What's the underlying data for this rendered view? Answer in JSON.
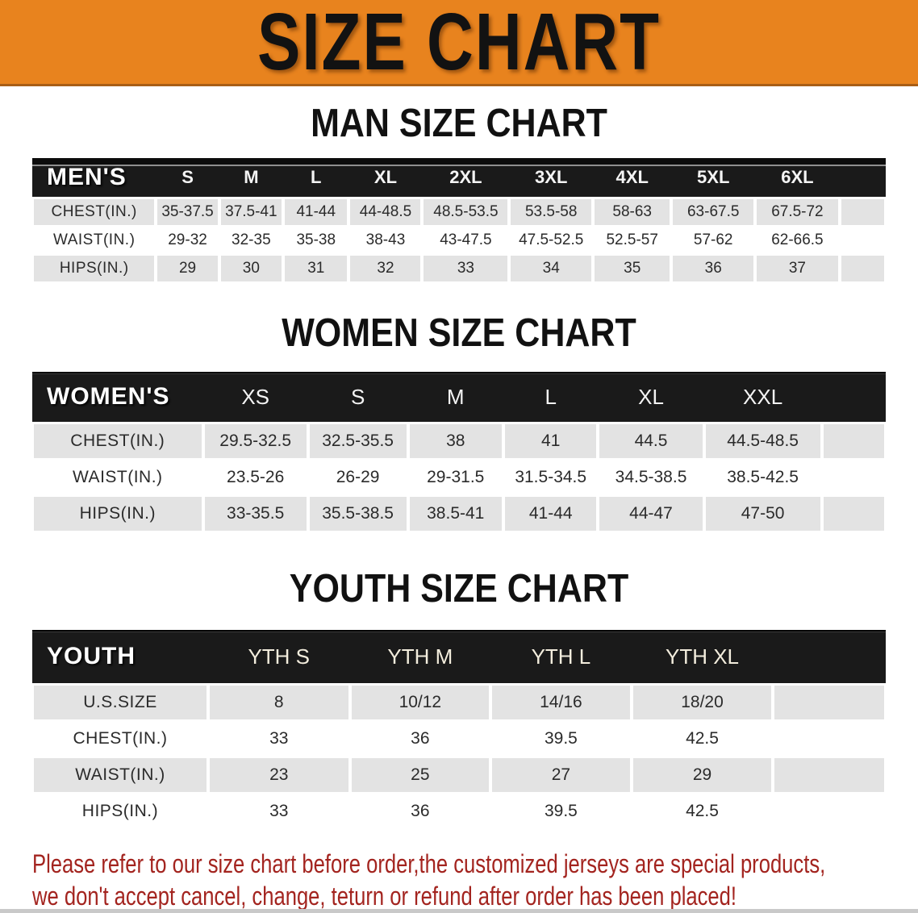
{
  "banner": {
    "title": "SIZE CHART",
    "bg_color": "#E8831E",
    "title_color": "#121212"
  },
  "colors": {
    "header_black": "#1a1a1a",
    "row_gray": "#e3e3e3",
    "footer_red": "#A3241F"
  },
  "sections": {
    "men": {
      "heading": "MAN SIZE CHART",
      "label": "MEN'S",
      "columns": [
        "S",
        "M",
        "L",
        "XL",
        "2XL",
        "3XL",
        "4XL",
        "5XL",
        "6XL"
      ],
      "rows": [
        {
          "label": "CHEST(IN.)",
          "values": [
            "35-37.5",
            "37.5-41",
            "41-44",
            "44-48.5",
            "48.5-53.5",
            "53.5-58",
            "58-63",
            "63-67.5",
            "67.5-72"
          ]
        },
        {
          "label": "WAIST(IN.)",
          "values": [
            "29-32",
            "32-35",
            "35-38",
            "38-43",
            "43-47.5",
            "47.5-52.5",
            "52.5-57",
            "57-62",
            "62-66.5"
          ]
        },
        {
          "label": "HIPS(IN.)",
          "values": [
            "29",
            "30",
            "31",
            "32",
            "33",
            "34",
            "35",
            "36",
            "37"
          ]
        }
      ]
    },
    "women": {
      "heading": "WOMEN SIZE CHART",
      "label": "WOMEN'S",
      "columns": [
        "XS",
        "S",
        "M",
        "L",
        "XL",
        "XXL"
      ],
      "rows": [
        {
          "label": "CHEST(IN.)",
          "values": [
            "29.5-32.5",
            "32.5-35.5",
            "38",
            "41",
            "44.5",
            "44.5-48.5"
          ]
        },
        {
          "label": "WAIST(IN.)",
          "values": [
            "23.5-26",
            "26-29",
            "29-31.5",
            "31.5-34.5",
            "34.5-38.5",
            "38.5-42.5"
          ]
        },
        {
          "label": "HIPS(IN.)",
          "values": [
            "33-35.5",
            "35.5-38.5",
            "38.5-41",
            "41-44",
            "44-47",
            "47-50"
          ]
        }
      ]
    },
    "youth": {
      "heading": "YOUTH SIZE CHART",
      "label": "YOUTH",
      "columns": [
        "YTH S",
        "YTH M",
        "YTH L",
        "YTH XL"
      ],
      "rows": [
        {
          "label": "U.S.SIZE",
          "values": [
            "8",
            "10/12",
            "14/16",
            "18/20"
          ]
        },
        {
          "label": "CHEST(IN.)",
          "values": [
            "33",
            "36",
            "39.5",
            "42.5"
          ]
        },
        {
          "label": "WAIST(IN.)",
          "values": [
            "23",
            "25",
            "27",
            "29"
          ]
        },
        {
          "label": "HIPS(IN.)",
          "values": [
            "33",
            "36",
            "39.5",
            "42.5"
          ]
        }
      ]
    }
  },
  "footer": {
    "line1": "Please refer to our size chart before order,the customized jerseys are special products,",
    "line2": "we don't accept cancel, change, teturn or refund after order has been placed!"
  }
}
